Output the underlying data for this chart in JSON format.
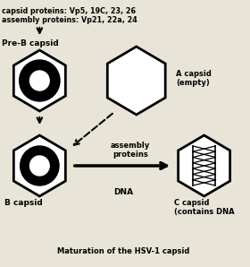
{
  "title": "Maturation of the HSV-1 capsid",
  "line1": "capsid proteins: Vp5, 19C, 23, 26",
  "line2": "assembly proteins: Vp21, 22a, 24",
  "label_preB": "Pre-B capsid",
  "label_B": "B capsid",
  "label_A": "A capsid\n(empty)",
  "label_C": "C capsid\n(contains DNA",
  "label_assembly": "assembly\nproteins",
  "label_DNA": "DNA",
  "bg_color": "#e8e4d8",
  "title_fontsize": 6.0,
  "text_fontsize": 5.8,
  "label_fontsize": 6.5
}
